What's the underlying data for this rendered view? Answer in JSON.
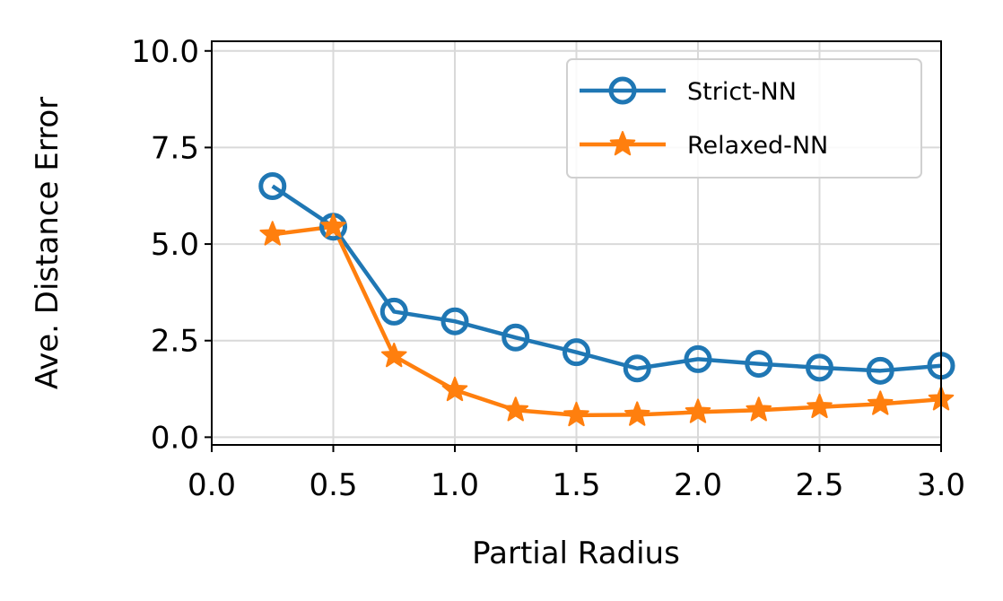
{
  "chart_data": {
    "type": "line",
    "title": "",
    "xlabel": "Partial Radius",
    "ylabel": "Ave. Distance Error",
    "xlim": [
      0.0,
      3.0
    ],
    "ylim": [
      -0.2,
      10.25
    ],
    "xticks": [
      0.0,
      0.5,
      1.0,
      1.5,
      2.0,
      2.5,
      3.0
    ],
    "xtick_labels": [
      "0.0",
      "0.5",
      "1.0",
      "1.5",
      "2.0",
      "2.5",
      "3.0"
    ],
    "yticks": [
      0.0,
      2.5,
      5.0,
      7.5,
      10.0
    ],
    "ytick_labels": [
      "0.0",
      "2.5",
      "5.0",
      "7.5",
      "10.0"
    ],
    "grid": true,
    "legend_position": "top-right",
    "x": [
      0.25,
      0.5,
      0.75,
      1.0,
      1.25,
      1.5,
      1.75,
      2.0,
      2.25,
      2.5,
      2.75,
      3.0
    ],
    "series": [
      {
        "name": "Strict-NN",
        "color": "#1f77b4",
        "marker": "circle",
        "values": [
          6.5,
          5.45,
          3.25,
          3.0,
          2.58,
          2.2,
          1.78,
          2.02,
          1.9,
          1.8,
          1.72,
          1.85
        ]
      },
      {
        "name": "Relaxed-NN",
        "color": "#ff7f0e",
        "marker": "star",
        "values": [
          5.25,
          5.45,
          2.1,
          1.22,
          0.7,
          0.57,
          0.58,
          0.65,
          0.7,
          0.78,
          0.86,
          0.98
        ]
      }
    ]
  }
}
